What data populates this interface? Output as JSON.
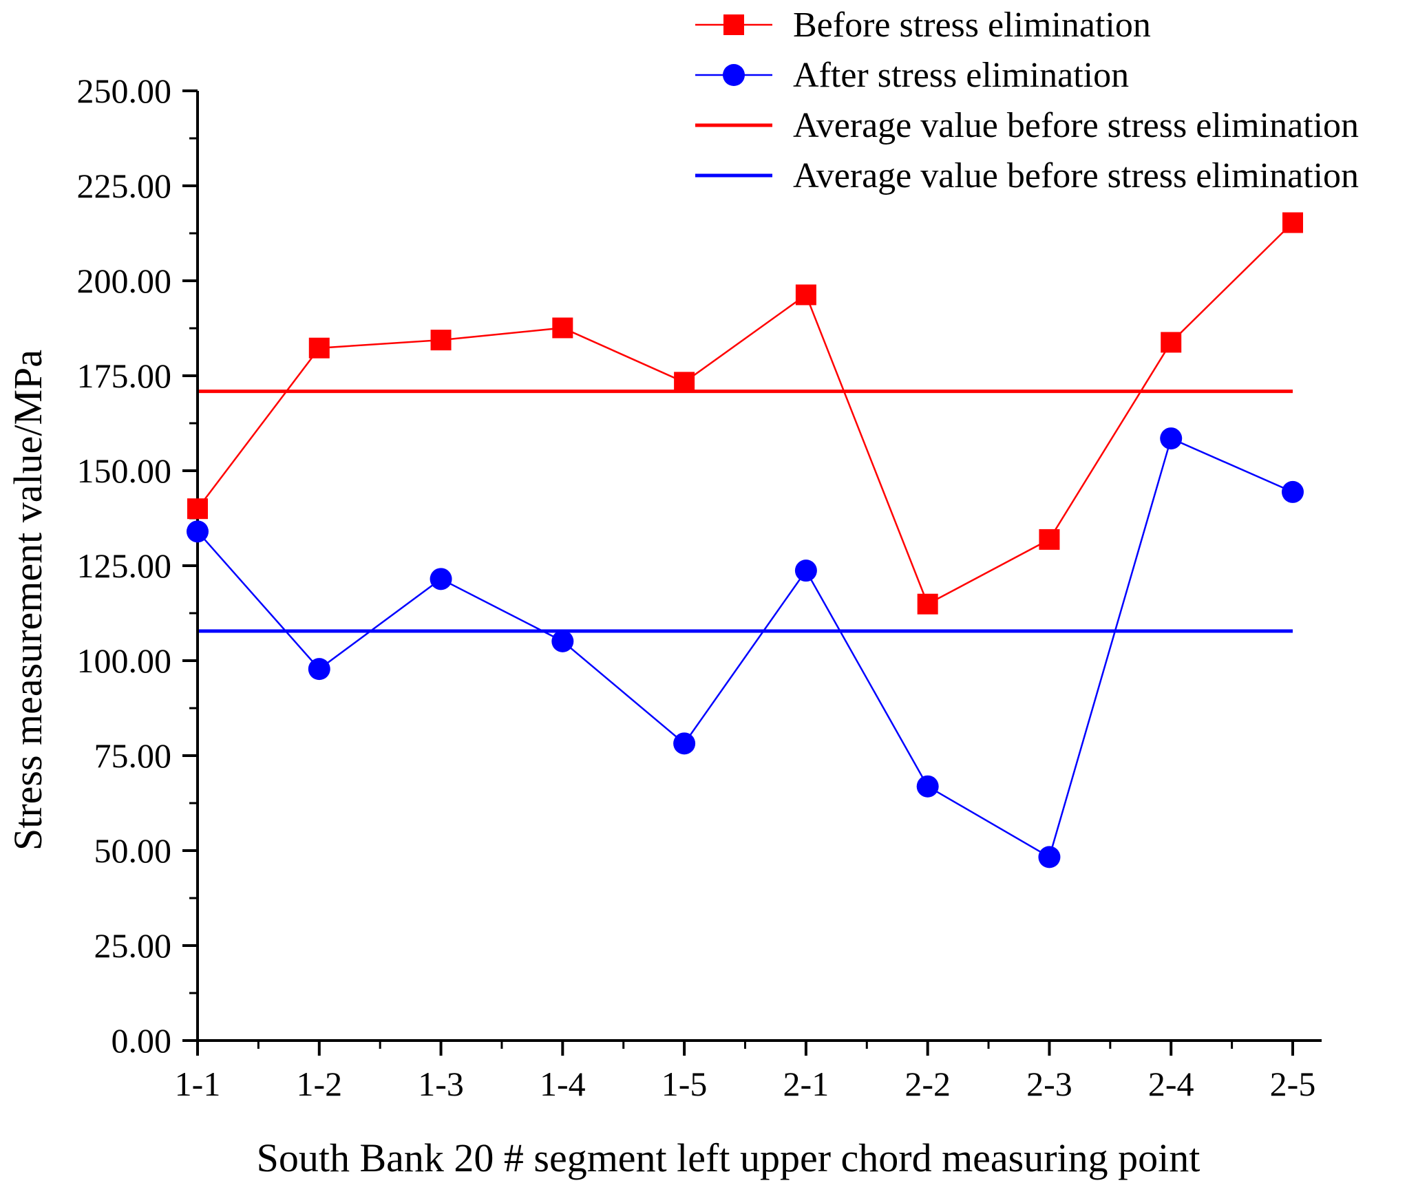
{
  "chart_data": {
    "type": "line",
    "title": "",
    "xlabel": "South Bank 20 # segment left upper chord measuring point",
    "ylabel": "Stress measurement value/MPa",
    "categories": [
      "1-1",
      "1-2",
      "1-3",
      "1-4",
      "1-5",
      "2-1",
      "2-2",
      "2-3",
      "2-4",
      "2-5"
    ],
    "ylim": [
      0,
      250
    ],
    "yticks": [
      "0.00",
      "25.00",
      "50.00",
      "75.00",
      "100.00",
      "125.00",
      "150.00",
      "175.00",
      "200.00",
      "225.00",
      "250.00"
    ],
    "series": [
      {
        "name": "Before stress elimination",
        "color": "#ff0000",
        "marker": "square",
        "values": [
          140.0,
          182.3,
          184.4,
          187.6,
          173.3,
          196.3,
          114.9,
          131.9,
          183.8,
          215.3
        ]
      },
      {
        "name": "After stress elimination",
        "color": "#0000ff",
        "marker": "circle",
        "values": [
          134.0,
          97.8,
          121.5,
          105.1,
          78.2,
          123.7,
          66.9,
          48.3,
          158.5,
          144.4
        ]
      }
    ],
    "reference_lines": [
      {
        "name": "Average value before stress elimination",
        "color": "#ff0000",
        "value": 170.9
      },
      {
        "name": "Average value before stress elimination",
        "color": "#0000ff",
        "value": 107.8
      }
    ],
    "legend_position": "top-right",
    "grid": false
  }
}
